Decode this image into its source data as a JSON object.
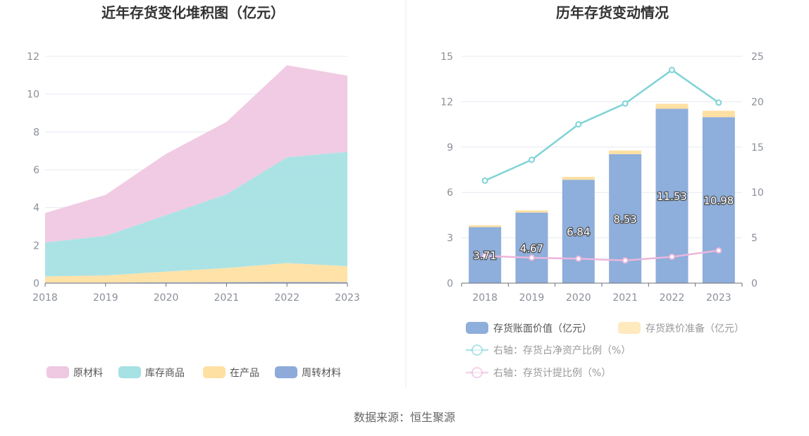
{
  "chart_data": [
    {
      "type": "area",
      "stacked": true,
      "title": "近年存货变化堆积图（亿元）",
      "categories": [
        "2018",
        "2019",
        "2020",
        "2021",
        "2022",
        "2023"
      ],
      "y_ticks": [
        "0",
        "2",
        "4",
        "6",
        "8",
        "10",
        "12"
      ],
      "ylim": [
        0,
        12
      ],
      "grid": true,
      "legend_position": "bottom",
      "series": [
        {
          "name": "周转材料",
          "values": [
            0.03,
            0.03,
            0.04,
            0.05,
            0.06,
            0.05
          ],
          "color": "#8eaadb"
        },
        {
          "name": "在产品",
          "values": [
            0.33,
            0.38,
            0.57,
            0.75,
            1.0,
            0.85
          ],
          "color": "#ffe0a3"
        },
        {
          "name": "库存商品",
          "values": [
            1.79,
            2.09,
            2.99,
            3.9,
            5.6,
            6.05
          ],
          "color": "#a6e1e4"
        },
        {
          "name": "原材料",
          "values": [
            1.56,
            2.17,
            3.24,
            3.83,
            4.87,
            4.03
          ],
          "color": "#efc8e2"
        }
      ]
    },
    {
      "type": "bar",
      "title": "历年存货变动情况",
      "categories": [
        "2018",
        "2019",
        "2020",
        "2021",
        "2022",
        "2023"
      ],
      "y_left_ticks": [
        "0",
        "3",
        "6",
        "9",
        "12",
        "15"
      ],
      "y_right_ticks": [
        "0",
        "5",
        "10",
        "15",
        "20",
        "25"
      ],
      "ylim_left": [
        0,
        15
      ],
      "ylim_right": [
        0,
        25
      ],
      "grid": true,
      "legend_position": "bottom",
      "bars": [
        {
          "name": "存货账面价值（亿元）",
          "values": [
            3.71,
            4.67,
            6.84,
            8.53,
            11.53,
            10.98
          ],
          "labels": [
            "3.71",
            "4.67",
            "6.84",
            "8.53",
            "11.53",
            "10.98"
          ],
          "color": "#8eaedb"
        },
        {
          "name": "存货跌价准备（亿元）",
          "values": [
            0.12,
            0.14,
            0.19,
            0.24,
            0.33,
            0.42
          ],
          "color": "#ffe0a3"
        }
      ],
      "lines": [
        {
          "name": "右轴：存货占净资产比例（%）",
          "axis": "right",
          "values": [
            11.3,
            13.6,
            17.5,
            19.8,
            23.5,
            19.9
          ],
          "color": "#7fd3d6"
        },
        {
          "name": "右轴：存货计提比例（%）",
          "axis": "right",
          "values": [
            3.0,
            2.8,
            2.7,
            2.5,
            2.9,
            3.6
          ],
          "color": "#ebb6dc"
        }
      ]
    }
  ],
  "footer": {
    "source": "数据来源：恒生聚源"
  }
}
